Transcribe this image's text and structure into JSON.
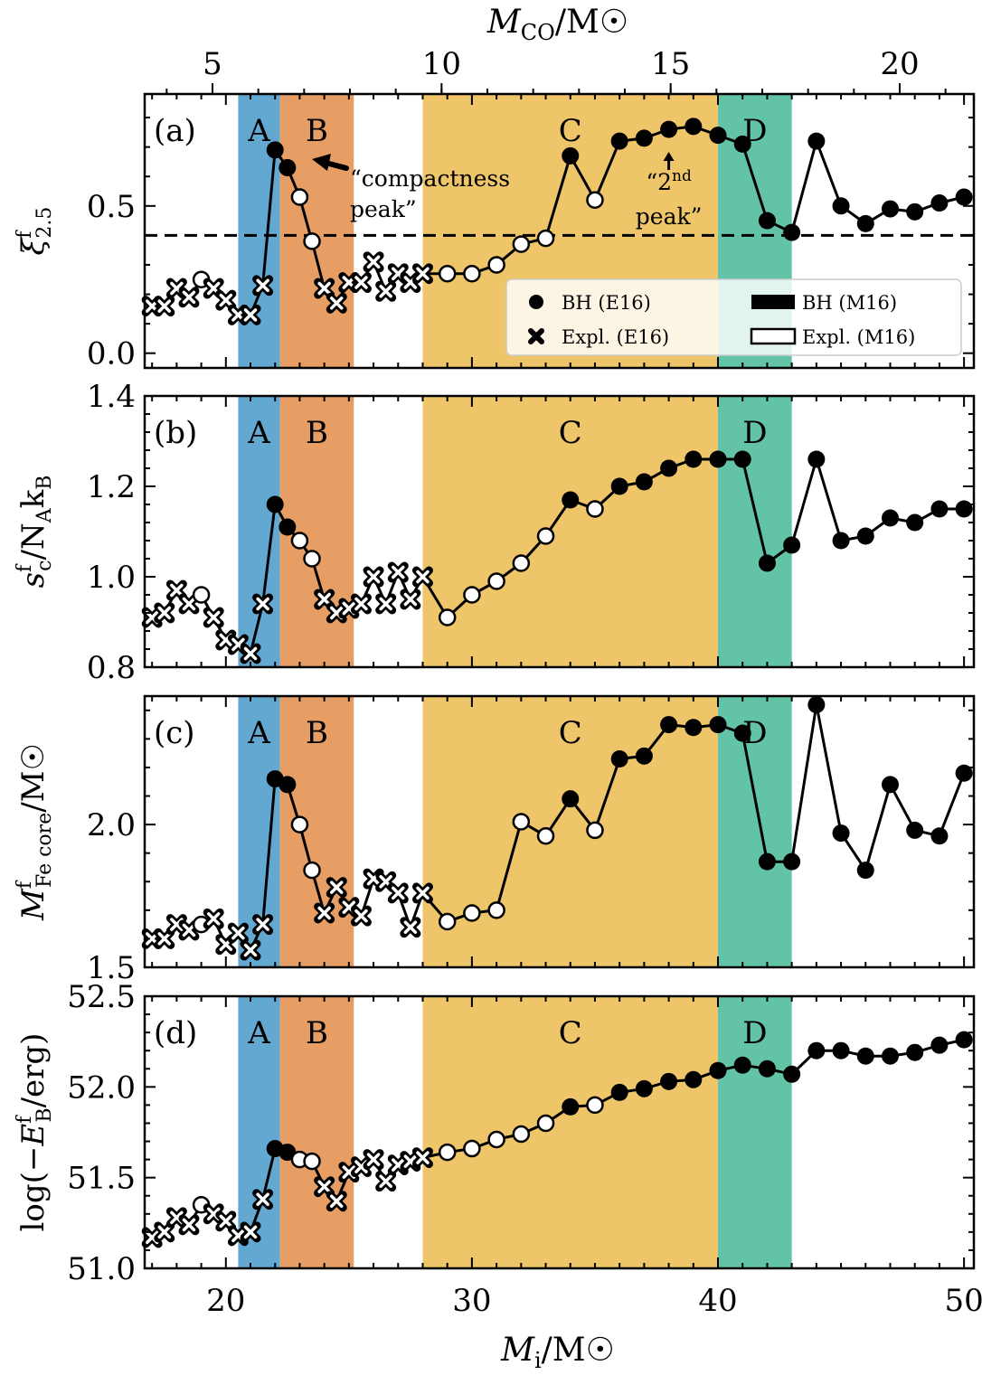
{
  "chart_data": {
    "type": "line",
    "xlabel": "M_i/M☉",
    "xlim": [
      16.7,
      50.4
    ],
    "x_ticks": [
      20,
      30,
      40,
      50
    ],
    "top_axis": {
      "label": "M_CO/M☉",
      "ticks": [
        5,
        10,
        15,
        20
      ]
    },
    "regions": [
      {
        "label": "A",
        "from": 20.5,
        "to": 22.2,
        "color": "#62a8d1"
      },
      {
        "label": "B",
        "from": 22.2,
        "to": 25.2,
        "color": "#e69e64"
      },
      {
        "label": "C",
        "from": 28.0,
        "to": 40.0,
        "color": "#eec568"
      },
      {
        "label": "D",
        "from": 40.0,
        "to": 43.0,
        "color": "#62c3a7"
      }
    ],
    "series_x": [
      17,
      17.5,
      18,
      18.5,
      19,
      19.5,
      20,
      20.5,
      21,
      21.5,
      22,
      22.5,
      23,
      23.5,
      24,
      24.5,
      25,
      25.5,
      26,
      26.5,
      27,
      27.5,
      28,
      29,
      30,
      31,
      32,
      33,
      34,
      35,
      36,
      37,
      38,
      39,
      40,
      41,
      42,
      43,
      44,
      45,
      46,
      47,
      48,
      49,
      50
    ],
    "markers": [
      "x",
      "x",
      "x",
      "x",
      "o",
      "x",
      "x",
      "x",
      "x",
      "x",
      "B",
      "B",
      "o",
      "o",
      "x",
      "x",
      "x",
      "x",
      "x",
      "x",
      "x",
      "x",
      "x",
      "o",
      "o",
      "o",
      "o",
      "o",
      "B",
      "o",
      "B",
      "B",
      "B",
      "B",
      "B",
      "B",
      "B",
      "B",
      "B",
      "B",
      "B",
      "B",
      "B",
      "B",
      "B"
    ],
    "panels": [
      {
        "tag": "(a)",
        "ylabel": "ξ^f_2.5",
        "ylim": [
          -0.05,
          0.88
        ],
        "yticks": [
          "0.0",
          "0.5"
        ],
        "ytick_values": [
          0.0,
          0.5
        ],
        "hline": 0.4,
        "values": [
          0.16,
          0.16,
          0.22,
          0.19,
          0.25,
          0.22,
          0.18,
          0.13,
          0.13,
          0.23,
          0.69,
          0.63,
          0.53,
          0.38,
          0.22,
          0.17,
          0.24,
          0.24,
          0.31,
          0.21,
          0.27,
          0.24,
          0.27,
          0.27,
          0.27,
          0.3,
          0.37,
          0.39,
          0.67,
          0.52,
          0.72,
          0.73,
          0.76,
          0.77,
          0.74,
          0.71,
          0.45,
          0.41,
          0.72,
          0.5,
          0.44,
          0.49,
          0.48,
          0.51,
          0.53
        ]
      },
      {
        "tag": "(b)",
        "ylabel": "s^f_c/N_A k_B",
        "ylim": [
          0.8,
          1.4
        ],
        "yticks": [
          "0.8",
          "1.0",
          "1.2",
          "1.4"
        ],
        "ytick_values": [
          0.8,
          1.0,
          1.2,
          1.4
        ],
        "values": [
          0.91,
          0.92,
          0.97,
          0.94,
          0.96,
          0.91,
          0.86,
          0.85,
          0.83,
          0.94,
          1.16,
          1.11,
          1.08,
          1.04,
          0.95,
          0.92,
          0.93,
          0.94,
          1.0,
          0.94,
          1.01,
          0.95,
          1.0,
          0.91,
          0.96,
          0.99,
          1.03,
          1.09,
          1.17,
          1.15,
          1.2,
          1.21,
          1.24,
          1.26,
          1.26,
          1.26,
          1.03,
          1.07,
          1.26,
          1.08,
          1.09,
          1.13,
          1.12,
          1.15,
          1.15
        ]
      },
      {
        "tag": "(c)",
        "ylabel": "M^f_Fe core/M☉",
        "ylim": [
          1.5,
          2.45
        ],
        "yticks": [
          "1.5",
          "2.0"
        ],
        "ytick_values": [
          1.5,
          2.0
        ],
        "values": [
          1.6,
          1.6,
          1.65,
          1.63,
          1.65,
          1.67,
          1.58,
          1.62,
          1.56,
          1.65,
          2.16,
          2.14,
          2.0,
          1.84,
          1.69,
          1.78,
          1.71,
          1.68,
          1.81,
          1.8,
          1.76,
          1.64,
          1.76,
          1.66,
          1.69,
          1.7,
          2.01,
          1.96,
          2.09,
          1.98,
          2.23,
          2.24,
          2.35,
          2.34,
          2.35,
          2.32,
          1.87,
          1.87,
          2.42,
          1.97,
          1.84,
          2.14,
          1.98,
          1.96,
          2.18
        ]
      },
      {
        "tag": "(d)",
        "ylabel": "log(−E^f_B/erg)",
        "ylim": [
          51.0,
          52.5
        ],
        "yticks": [
          "51.0",
          "51.5",
          "52.0",
          "52.5"
        ],
        "ytick_values": [
          51.0,
          51.5,
          52.0,
          52.5
        ],
        "values": [
          51.17,
          51.2,
          51.28,
          51.24,
          51.35,
          51.3,
          51.26,
          51.18,
          51.2,
          51.38,
          51.66,
          51.64,
          51.6,
          51.59,
          51.45,
          51.37,
          51.53,
          51.56,
          51.6,
          51.48,
          51.57,
          51.59,
          51.61,
          51.64,
          51.66,
          51.71,
          51.74,
          51.8,
          51.89,
          51.9,
          51.97,
          51.99,
          52.03,
          52.04,
          52.09,
          52.12,
          52.1,
          52.07,
          52.2,
          52.2,
          52.17,
          52.17,
          52.19,
          52.23,
          52.26
        ]
      }
    ],
    "legend": [
      {
        "marker": "dot",
        "label": "BH (E16)"
      },
      {
        "marker": "bar-filled",
        "label": "BH (M16)"
      },
      {
        "marker": "cross",
        "label": "Expl. (E16)"
      },
      {
        "marker": "bar-open",
        "label": "Expl. (M16)"
      }
    ],
    "annotations": [
      {
        "text_lines": [
          "“compactness",
          "peak”"
        ],
        "points_to_x": 22
      }
    ],
    "second_peak_prefix": "“2",
    "second_peak_sup": "nd",
    "second_peak_line2": "peak”",
    "second_peak_x": 38
  }
}
